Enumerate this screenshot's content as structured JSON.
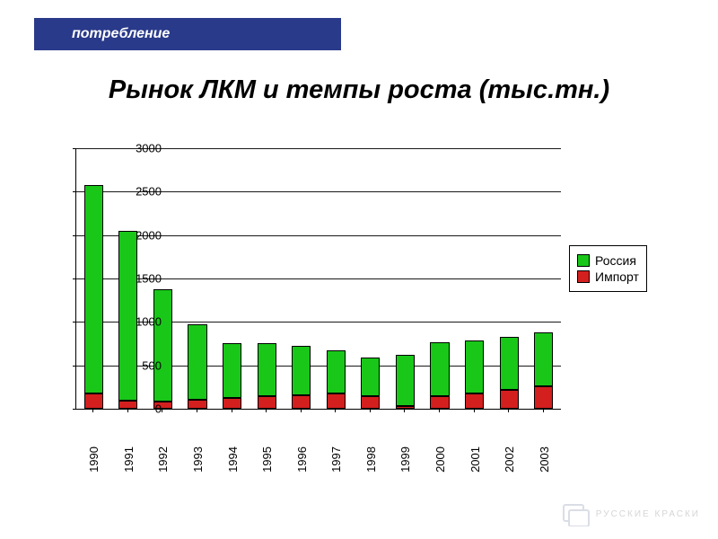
{
  "header": {
    "tab_label": "потребление",
    "tab_bg": "#2a3a8a",
    "tab_text_color": "#ffffff"
  },
  "title": {
    "text": "Рынок ЛКМ и темпы роста (тыс.тн.)",
    "fontsize": 29,
    "color": "#000000"
  },
  "chart": {
    "type": "stacked_bar",
    "categories": [
      "1990",
      "1991",
      "1992",
      "1993",
      "1994",
      "1995",
      "1996",
      "1997",
      "1998",
      "1999",
      "2000",
      "2001",
      "2002",
      "2003"
    ],
    "series": [
      {
        "name": "Импорт",
        "color": "#d41f1f",
        "values": [
          180,
          90,
          80,
          100,
          120,
          140,
          160,
          180,
          140,
          30,
          150,
          180,
          220,
          260
        ]
      },
      {
        "name": "Россия",
        "color": "#19c719",
        "values": [
          2400,
          1960,
          1300,
          870,
          640,
          620,
          560,
          490,
          450,
          590,
          620,
          610,
          610,
          620
        ]
      }
    ],
    "y_axis": {
      "min": 0,
      "max": 3000,
      "step": 500,
      "fontsize": 13,
      "grid_color": "#000000"
    },
    "x_axis": {
      "fontsize": 13,
      "label_rotation": -90
    },
    "bar_width_ratio": 0.55,
    "plot_bg": "#ffffff",
    "plot_border_color": "#000000",
    "bar_border_color": "#000000"
  },
  "legend": {
    "items": [
      {
        "label": "Россия",
        "color": "#19c719"
      },
      {
        "label": "Импорт",
        "color": "#d41f1f"
      }
    ],
    "border_color": "#000000",
    "fontsize": 14
  },
  "footer": {
    "brand": "РУССКИЕ КРАСКИ",
    "logo_color": "#9aa0b8"
  }
}
